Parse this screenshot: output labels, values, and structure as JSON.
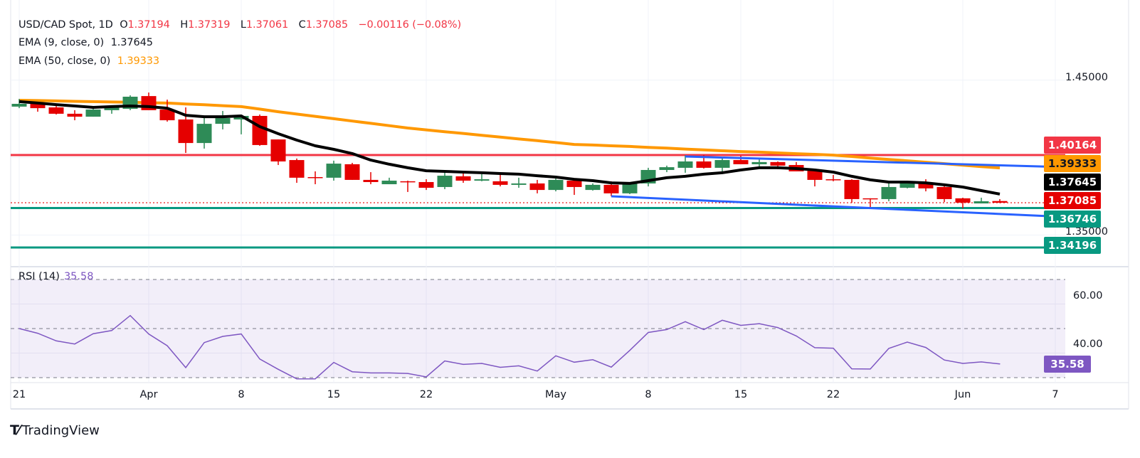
{
  "legend": {
    "symbol": "USD/CAD Spot, 1D",
    "open_label": "O",
    "open": "1.37194",
    "high_label": "H",
    "high": "1.37319",
    "low_label": "L",
    "low": "1.37061",
    "close_label": "C",
    "close": "1.37085",
    "change": "−0.00116 (−0.08%)",
    "ema9_label": "EMA (9, close, 0)",
    "ema9_value": "1.37645",
    "ema50_label": "EMA (50, close, 0)",
    "ema50_value": "1.39333"
  },
  "rsi_legend": {
    "label": "RSI (14)",
    "value": "35.58"
  },
  "price_axis": {
    "labels": [
      "1.45000",
      "1.35000"
    ]
  },
  "rsi_axis": {
    "labels": [
      "60.00",
      "40.00"
    ]
  },
  "price_tags": [
    {
      "text": "1.40164",
      "bg": "#f23645",
      "fg": "#ffffff"
    },
    {
      "text": "1.39333",
      "bg": "#ff9800",
      "fg": "#131722"
    },
    {
      "text": "1.37645",
      "bg": "#000000",
      "fg": "#ffffff"
    },
    {
      "text": "1.37085",
      "bg": "#e50000",
      "fg": "#ffffff"
    },
    {
      "text": "1.36746",
      "bg": "#089981",
      "fg": "#ffffff"
    },
    {
      "text": "1.34196",
      "bg": "#089981",
      "fg": "#ffffff"
    }
  ],
  "rsi_tag": {
    "text": "35.58",
    "bg": "#7e57c2",
    "fg": "#ffffff"
  },
  "time_axis": [
    {
      "label": "21",
      "date": "Mar 21"
    },
    {
      "label": "Apr",
      "date": "Apr 1"
    },
    {
      "label": "8",
      "date": "Apr 8"
    },
    {
      "label": "15",
      "date": "Apr 15"
    },
    {
      "label": "22",
      "date": "Apr 22"
    },
    {
      "label": "May",
      "date": "May 1"
    },
    {
      "label": "8",
      "date": "May 8"
    },
    {
      "label": "15",
      "date": "May 15"
    },
    {
      "label": "22",
      "date": "May 22"
    },
    {
      "label": "Jun",
      "date": "Jun 2"
    },
    {
      "label": "7",
      "date": "Jun 9"
    }
  ],
  "branding": "TradingView",
  "colors": {
    "up": "#2e8b57",
    "down": "#e50000",
    "ema9": "#000000",
    "ema50": "#ff9800",
    "channel": "#2962ff",
    "resistance": "#f23645",
    "support": "#089981",
    "rsi": "#7e57c2"
  },
  "chart_data": [
    {
      "type": "candlestick",
      "title": "USD/CAD Spot, 1D",
      "ylim": [
        1.33,
        1.47
      ],
      "grid": true,
      "columns": [
        "date",
        "open",
        "high",
        "low",
        "close"
      ],
      "candles": [
        [
          "Mar 21",
          1.4329,
          1.4379,
          1.4319,
          1.4347
        ],
        [
          "Mar 24",
          1.4356,
          1.4356,
          1.4296,
          1.4319
        ],
        [
          "Mar 25",
          1.4324,
          1.4333,
          1.4278,
          1.4283
        ],
        [
          "Mar 26",
          1.4283,
          1.4306,
          1.4241,
          1.4264
        ],
        [
          "Mar 27",
          1.4264,
          1.4333,
          1.4264,
          1.431
        ],
        [
          "Mar 28",
          1.4306,
          1.4338,
          1.4283,
          1.4324
        ],
        [
          "Mar 31",
          1.4315,
          1.4402,
          1.4306,
          1.4393
        ],
        [
          "Apr 1",
          1.4397,
          1.442,
          1.4306,
          1.4306
        ],
        [
          "Apr 2",
          1.431,
          1.4374,
          1.4232,
          1.4241
        ],
        [
          "Apr 3",
          1.4246,
          1.4324,
          1.403,
          1.4094
        ],
        [
          "Apr 4",
          1.4094,
          1.4264,
          1.4058,
          1.4218
        ],
        [
          "Apr 7",
          1.4218,
          1.4301,
          1.4182,
          1.4255
        ],
        [
          "Apr 8",
          1.4246,
          1.4273,
          1.415,
          1.4269
        ],
        [
          "Apr 9",
          1.4269,
          1.4278,
          1.4076,
          1.4081
        ],
        [
          "Apr 10",
          1.4117,
          1.4117,
          1.3952,
          1.3975
        ],
        [
          "Apr 11",
          1.3984,
          1.3994,
          1.3837,
          1.387
        ],
        [
          "Apr 14",
          1.3874,
          1.3911,
          1.3828,
          1.387
        ],
        [
          "Apr 15",
          1.387,
          1.398,
          1.3851,
          1.3961
        ],
        [
          "Apr 16",
          1.3957,
          1.3966,
          1.3856,
          1.3856
        ],
        [
          "Apr 17",
          1.3856,
          1.3906,
          1.3828,
          1.3842
        ],
        [
          "Apr 18",
          1.3828,
          1.387,
          1.3828,
          1.3851
        ],
        [
          "Apr 21",
          1.3847,
          1.3851,
          1.3778,
          1.3842
        ],
        [
          "Apr 22",
          1.3842,
          1.386,
          1.3791,
          1.3805
        ],
        [
          "Apr 23",
          1.381,
          1.3906,
          1.3796,
          1.3883
        ],
        [
          "Apr 24",
          1.3879,
          1.3897,
          1.3837,
          1.3851
        ],
        [
          "Apr 25",
          1.3851,
          1.3893,
          1.3847,
          1.386
        ],
        [
          "Apr 28",
          1.3847,
          1.3893,
          1.3814,
          1.3824
        ],
        [
          "Apr 29",
          1.3824,
          1.387,
          1.3805,
          1.3833
        ],
        [
          "Apr 30",
          1.3833,
          1.3856,
          1.3769,
          1.3791
        ],
        [
          "May 1",
          1.3791,
          1.3865,
          1.3782,
          1.3856
        ],
        [
          "May 2",
          1.3851,
          1.3851,
          1.3759,
          1.381
        ],
        [
          "May 5",
          1.3791,
          1.3833,
          1.3787,
          1.3824
        ],
        [
          "May 6",
          1.3824,
          1.3847,
          1.375,
          1.3769
        ],
        [
          "May 7",
          1.3769,
          1.3842,
          1.3764,
          1.3837
        ],
        [
          "May 8",
          1.3833,
          1.3934,
          1.3814,
          1.392
        ],
        [
          "May 9",
          1.392,
          1.3948,
          1.3906,
          1.3938
        ],
        [
          "May 12",
          1.3934,
          1.4016,
          1.3902,
          1.3975
        ],
        [
          "May 13",
          1.3975,
          1.4016,
          1.3929,
          1.3934
        ],
        [
          "May 14",
          1.3934,
          1.3994,
          1.3906,
          1.3984
        ],
        [
          "May 15",
          1.3984,
          1.4012,
          1.3957,
          1.3957
        ],
        [
          "May 16",
          1.3957,
          1.3998,
          1.3934,
          1.3971
        ],
        [
          "May 19",
          1.3971,
          1.3975,
          1.3925,
          1.3948
        ],
        [
          "May 20",
          1.3952,
          1.3971,
          1.3911,
          1.3911
        ],
        [
          "May 21",
          1.3915,
          1.3925,
          1.3814,
          1.3856
        ],
        [
          "May 22",
          1.386,
          1.3888,
          1.3847,
          1.3858
        ],
        [
          "May 23",
          1.3856,
          1.386,
          1.3709,
          1.3732
        ],
        [
          "May 26",
          1.3737,
          1.3737,
          1.3681,
          1.3735
        ],
        [
          "May 27",
          1.3732,
          1.3837,
          1.3718,
          1.381
        ],
        [
          "May 28",
          1.3805,
          1.3842,
          1.3801,
          1.3837
        ],
        [
          "May 29",
          1.3833,
          1.386,
          1.3782,
          1.3801
        ],
        [
          "May 30",
          1.381,
          1.3824,
          1.3713,
          1.3732
        ],
        [
          "Jun 2",
          1.3737,
          1.3741,
          1.3672,
          1.3709
        ],
        [
          "Jun 3",
          1.3704,
          1.3741,
          1.3704,
          1.3718
        ],
        [
          "Jun 4",
          1.37194,
          1.37319,
          1.37061,
          1.37085
        ]
      ],
      "series": [
        {
          "name": "EMA (9, close, 0)",
          "values": [
            1.4361,
            1.4352,
            1.4342,
            1.4333,
            1.4324,
            1.4329,
            1.4333,
            1.4329,
            1.4319,
            1.4273,
            1.4264,
            1.4264,
            1.4269,
            1.42,
            1.4154,
            1.4113,
            1.4076,
            1.4053,
            1.4026,
            1.3984,
            1.3957,
            1.3934,
            1.3915,
            1.3911,
            1.3906,
            1.3902,
            1.3897,
            1.3893,
            1.3883,
            1.3874,
            1.386,
            1.3851,
            1.3837,
            1.3833,
            1.3851,
            1.387,
            1.3879,
            1.3893,
            1.3902,
            1.392,
            1.3934,
            1.3934,
            1.3929,
            1.392,
            1.3906,
            1.3879,
            1.3856,
            1.3842,
            1.3842,
            1.3837,
            1.3824,
            1.381,
            1.3787,
            1.37645
          ]
        },
        {
          "name": "EMA (50, close, 0)",
          "values": [
            1.437,
            1.4368,
            1.4366,
            1.4363,
            1.4361,
            1.4359,
            1.4357,
            1.4354,
            1.4352,
            1.4346,
            1.4341,
            1.4335,
            1.4329,
            1.4313,
            1.4296,
            1.4281,
            1.4266,
            1.4251,
            1.4236,
            1.4221,
            1.4206,
            1.4191,
            1.4179,
            1.4167,
            1.4156,
            1.4144,
            1.4132,
            1.412,
            1.4109,
            1.4097,
            1.4085,
            1.4081,
            1.4076,
            1.4072,
            1.4066,
            1.4061,
            1.4055,
            1.405,
            1.4044,
            1.4039,
            1.4035,
            1.403,
            1.4025,
            1.4021,
            1.4016,
            1.4007,
            1.3997,
            1.3988,
            1.3979,
            1.397,
            1.3961,
            1.3951,
            1.3942,
            1.39333
          ]
        }
      ],
      "horizontal_levels": [
        {
          "value": 1.40164,
          "color": "#f23645"
        },
        {
          "value": 1.36746,
          "color": "#089981"
        },
        {
          "value": 1.34196,
          "color": "#089981"
        },
        {
          "value": 1.37085,
          "color": "#e50000",
          "style": "dotted"
        }
      ],
      "trendlines": [
        {
          "from": [
            "May 12",
            1.4007
          ],
          "to": [
            "Jun 4",
            1.395
          ],
          "extend": "right",
          "color": "#2962ff"
        },
        {
          "from": [
            "May 6",
            1.375
          ],
          "to": [
            "Jun 4",
            1.3636
          ],
          "extend": "right",
          "color": "#2962ff"
        }
      ]
    },
    {
      "type": "line",
      "title": "RSI (14)",
      "ylim": [
        30,
        70
      ],
      "bands": [
        70,
        50,
        30
      ],
      "x": [
        "Mar 21",
        "Mar 24",
        "Mar 25",
        "Mar 26",
        "Mar 27",
        "Mar 28",
        "Mar 31",
        "Apr 1",
        "Apr 2",
        "Apr 3",
        "Apr 4",
        "Apr 7",
        "Apr 8",
        "Apr 9",
        "Apr 10",
        "Apr 11",
        "Apr 14",
        "Apr 15",
        "Apr 16",
        "Apr 17",
        "Apr 18",
        "Apr 21",
        "Apr 22",
        "Apr 23",
        "Apr 24",
        "Apr 25",
        "Apr 28",
        "Apr 29",
        "Apr 30",
        "May 1",
        "May 2",
        "May 5",
        "May 6",
        "May 7",
        "May 8",
        "May 9",
        "May 12",
        "May 13",
        "May 14",
        "May 15",
        "May 16",
        "May 19",
        "May 20",
        "May 21",
        "May 22",
        "May 23",
        "May 26",
        "May 27",
        "May 28",
        "May 29",
        "May 30",
        "Jun 2",
        "Jun 3",
        "Jun 4"
      ],
      "values": [
        50.0,
        48.1,
        45.0,
        43.7,
        47.9,
        49.2,
        55.3,
        47.8,
        43.0,
        34.1,
        44.3,
        46.8,
        47.8,
        37.6,
        33.4,
        29.5,
        29.5,
        36.2,
        32.4,
        31.9,
        31.9,
        31.7,
        30.3,
        36.8,
        35.4,
        35.8,
        34.2,
        34.8,
        32.7,
        38.9,
        36.3,
        37.3,
        34.3,
        41.1,
        48.4,
        49.6,
        52.8,
        49.6,
        53.4,
        51.3,
        52.0,
        50.4,
        47.0,
        42.2,
        42.0,
        33.6,
        33.5,
        41.9,
        44.5,
        42.3,
        37.2,
        35.8,
        36.4,
        35.58
      ]
    }
  ]
}
